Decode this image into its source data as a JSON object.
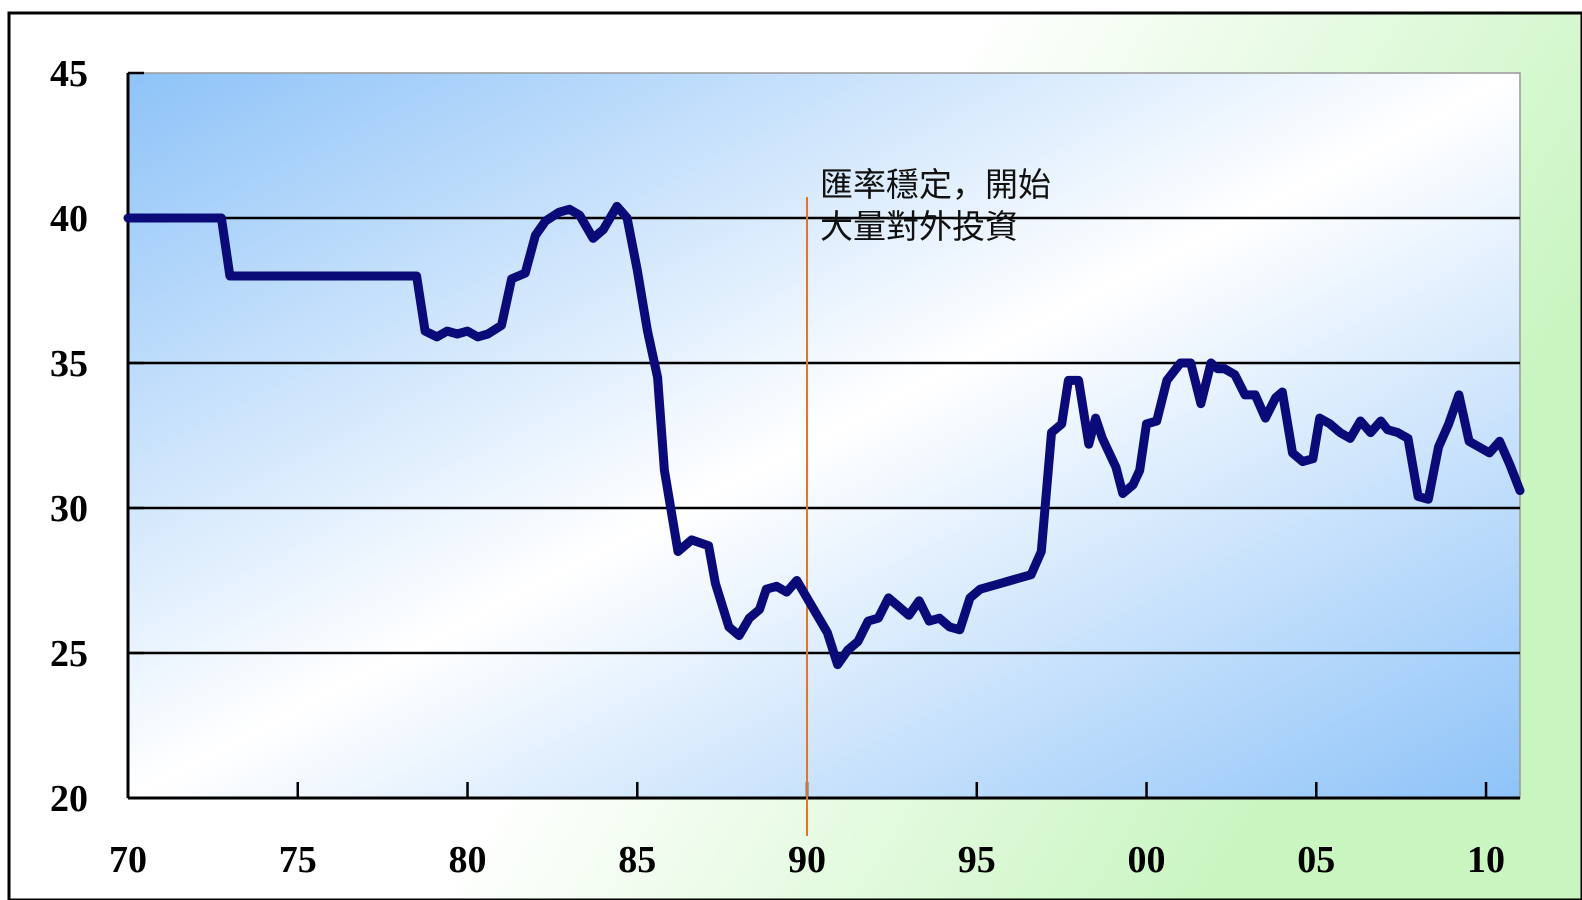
{
  "chart_data": {
    "type": "line",
    "title": "",
    "xlabel": "",
    "ylabel": "",
    "xlim": [
      1970,
      2011
    ],
    "ylim": [
      20,
      45
    ],
    "y_ticks": [
      "45",
      "40",
      "35",
      "30",
      "25",
      "20"
    ],
    "x_ticks": [
      "70",
      "75",
      "80",
      "85",
      "90",
      "95",
      "00",
      "05",
      "10"
    ],
    "grid": "horizontal",
    "annotation": {
      "lines": [
        "匯率穩定，開始",
        "大量對外投資"
      ],
      "at_x": 1990
    },
    "colors": {
      "series": "#0a0a78",
      "marker_line": "#e8731c",
      "panel_edge": "#8ec3f8",
      "panel_center": "#ffffff",
      "outer_bg": "#c8f5c0"
    },
    "series": [
      {
        "x": [
          1970,
          1972.75,
          1973,
          1978.5,
          1978.75,
          1979.1,
          1979.4,
          1979.7,
          1980,
          1980.3,
          1980.6,
          1981,
          1981.3,
          1981.7,
          1982,
          1982.3,
          1982.7,
          1983,
          1983.3,
          1983.7,
          1984,
          1984.4,
          1984.7,
          1985,
          1985.3,
          1985.6,
          1985.8,
          1986.2,
          1986.6,
          1987.1,
          1987.3,
          1987.7,
          1988,
          1988.3,
          1988.6,
          1988.8,
          1989.1,
          1989.4,
          1989.7,
          1990,
          1990.3,
          1990.6,
          1990.9,
          1991.2,
          1991.5,
          1991.8,
          1992.1,
          1992.4,
          1992.7,
          1993,
          1993.3,
          1993.6,
          1993.9,
          1994.2,
          1994.5,
          1994.8,
          1995.1,
          1995.4,
          1995.7,
          1996,
          1996.3,
          1996.6,
          1996.9,
          1997.2,
          1997.5,
          1997.7,
          1998,
          1998.3,
          1998.5,
          1998.7,
          1998.9,
          1999.1,
          1999.3,
          1999.6,
          1999.8,
          2000,
          2000.3,
          2000.6,
          2000.8,
          2001,
          2001.3,
          2001.6,
          2001.9,
          2002.1,
          2002.3,
          2002.6,
          2002.9,
          2003.2,
          2003.5,
          2003.8,
          2004,
          2004.3,
          2004.6,
          2004.9,
          2005.1,
          2005.4,
          2005.7,
          2006,
          2006.3,
          2006.6,
          2006.9,
          2007.1,
          2007.4,
          2007.7,
          2008,
          2008.3,
          2008.6,
          2008.9,
          2009.2,
          2009.5,
          2009.8,
          2010.1,
          2010.4,
          2010.7,
          2011
        ],
        "y": [
          40,
          40,
          38,
          38,
          36.1,
          35.9,
          36.1,
          36,
          36.1,
          35.9,
          36,
          36.3,
          37.9,
          38.1,
          39.4,
          39.9,
          40.2,
          40.3,
          40.1,
          39.3,
          39.6,
          40.4,
          40,
          38.2,
          36.1,
          34.5,
          31.3,
          28.5,
          28.9,
          28.7,
          27.4,
          25.9,
          25.6,
          26.2,
          26.5,
          27.2,
          27.3,
          27.1,
          27.5,
          26.9,
          26.3,
          25.7,
          24.6,
          25.1,
          25.4,
          26.1,
          26.2,
          26.9,
          26.6,
          26.3,
          26.8,
          26.1,
          26.2,
          25.9,
          25.8,
          26.9,
          27.2,
          27.3,
          27.4,
          27.5,
          27.6,
          27.7,
          28.5,
          32.6,
          32.9,
          34.4,
          34.4,
          32.2,
          33.1,
          32.4,
          31.9,
          31.4,
          30.5,
          30.8,
          31.3,
          32.9,
          33,
          34.4,
          34.7,
          35,
          35,
          33.6,
          35,
          34.8,
          34.8,
          34.6,
          33.9,
          33.9,
          33.1,
          33.8,
          34,
          31.9,
          31.6,
          31.7,
          33.1,
          32.9,
          32.6,
          32.4,
          33,
          32.6,
          33,
          32.7,
          32.6,
          32.4,
          30.4,
          30.3,
          32.1,
          32.9,
          33.9,
          32.3,
          32.1,
          31.9,
          32.3,
          31.5,
          30.6
        ]
      }
    ]
  }
}
